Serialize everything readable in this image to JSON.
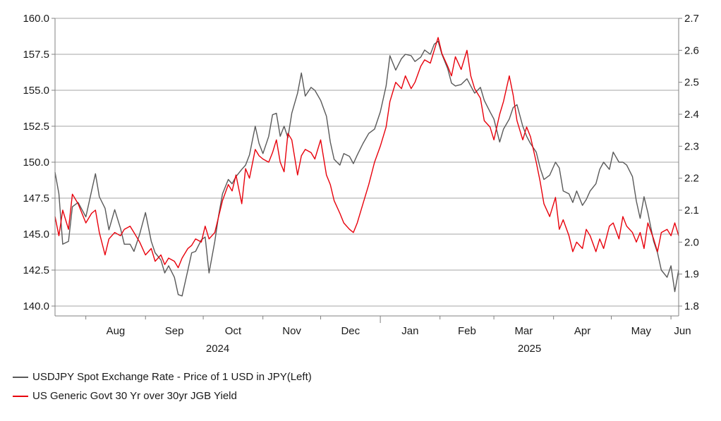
{
  "chart_data": {
    "type": "line",
    "title": "",
    "x_axis": {
      "months": [
        "Aug",
        "Sep",
        "Oct",
        "Nov",
        "Dec",
        "Jan",
        "Feb",
        "Mar",
        "Apr",
        "May",
        "Jun"
      ],
      "years": [
        "2024",
        "2025"
      ],
      "start": "2024-07-16",
      "end": "2025-06-05"
    },
    "y_left": {
      "min": 140.0,
      "max": 160.0,
      "ticks": [
        "140.0",
        "142.5",
        "145.0",
        "147.5",
        "150.0",
        "152.5",
        "155.0",
        "157.5",
        "160.0"
      ]
    },
    "y_right": {
      "min": 1.8,
      "max": 2.7,
      "ticks": [
        "1.8",
        "1.9",
        "2.0",
        "2.1",
        "2.2",
        "2.3",
        "2.4",
        "2.5",
        "2.6",
        "2.7"
      ]
    },
    "grid": "horizontal",
    "legend_position": "bottom-left",
    "series": [
      {
        "name": "USDJPY Spot Exchange Rate - Price of 1 USD in JPY(Left)",
        "axis": "left",
        "color": "#595959",
        "points": [
          [
            "2024-07-16",
            149.3
          ],
          [
            "2024-07-18",
            147.8
          ],
          [
            "2024-07-20",
            144.3
          ],
          [
            "2024-07-23",
            144.5
          ],
          [
            "2024-07-25",
            146.9
          ],
          [
            "2024-07-28",
            147.2
          ],
          [
            "2024-08-01",
            146.2
          ],
          [
            "2024-08-04",
            148.0
          ],
          [
            "2024-08-06",
            149.2
          ],
          [
            "2024-08-08",
            147.6
          ],
          [
            "2024-08-11",
            146.8
          ],
          [
            "2024-08-13",
            145.3
          ],
          [
            "2024-08-16",
            146.7
          ],
          [
            "2024-08-19",
            145.4
          ],
          [
            "2024-08-21",
            144.3
          ],
          [
            "2024-08-24",
            144.3
          ],
          [
            "2024-08-26",
            143.8
          ],
          [
            "2024-08-29",
            145.0
          ],
          [
            "2024-09-01",
            146.5
          ],
          [
            "2024-09-04",
            144.5
          ],
          [
            "2024-09-06",
            143.7
          ],
          [
            "2024-09-09",
            143.2
          ],
          [
            "2024-09-11",
            142.3
          ],
          [
            "2024-09-13",
            142.8
          ],
          [
            "2024-09-16",
            142.0
          ],
          [
            "2024-09-18",
            140.8
          ],
          [
            "2024-09-20",
            140.7
          ],
          [
            "2024-09-23",
            142.5
          ],
          [
            "2024-09-25",
            143.7
          ],
          [
            "2024-09-27",
            143.8
          ],
          [
            "2024-09-30",
            144.6
          ],
          [
            "2024-10-02",
            144.8
          ],
          [
            "2024-10-04",
            142.3
          ],
          [
            "2024-10-07",
            144.5
          ],
          [
            "2024-10-09",
            146.3
          ],
          [
            "2024-10-11",
            147.8
          ],
          [
            "2024-10-14",
            148.8
          ],
          [
            "2024-10-16",
            148.5
          ],
          [
            "2024-10-18",
            149.0
          ],
          [
            "2024-10-21",
            149.5
          ],
          [
            "2024-10-23",
            149.8
          ],
          [
            "2024-10-25",
            150.5
          ],
          [
            "2024-10-28",
            152.5
          ],
          [
            "2024-10-30",
            151.3
          ],
          [
            "2024-11-01",
            150.6
          ],
          [
            "2024-11-04",
            151.8
          ],
          [
            "2024-11-06",
            153.3
          ],
          [
            "2024-11-08",
            153.4
          ],
          [
            "2024-11-10",
            151.8
          ],
          [
            "2024-11-12",
            152.5
          ],
          [
            "2024-11-14",
            151.7
          ],
          [
            "2024-11-16",
            153.4
          ],
          [
            "2024-11-19",
            154.8
          ],
          [
            "2024-11-21",
            156.2
          ],
          [
            "2024-11-23",
            154.6
          ],
          [
            "2024-11-26",
            155.2
          ],
          [
            "2024-11-28",
            155.0
          ],
          [
            "2024-12-01",
            154.3
          ],
          [
            "2024-12-04",
            153.2
          ],
          [
            "2024-12-06",
            151.4
          ],
          [
            "2024-12-08",
            150.2
          ],
          [
            "2024-12-11",
            149.8
          ],
          [
            "2024-12-13",
            150.6
          ],
          [
            "2024-12-16",
            150.4
          ],
          [
            "2024-12-18",
            149.9
          ],
          [
            "2024-12-20",
            150.5
          ],
          [
            "2024-12-23",
            151.3
          ],
          [
            "2024-12-26",
            152.0
          ],
          [
            "2024-12-29",
            152.3
          ],
          [
            "2025-01-01",
            153.5
          ],
          [
            "2025-01-04",
            155.3
          ],
          [
            "2025-01-06",
            157.4
          ],
          [
            "2025-01-09",
            156.4
          ],
          [
            "2025-01-12",
            157.2
          ],
          [
            "2025-01-14",
            157.5
          ],
          [
            "2025-01-17",
            157.4
          ],
          [
            "2025-01-19",
            157.0
          ],
          [
            "2025-01-22",
            157.3
          ],
          [
            "2025-01-24",
            157.8
          ],
          [
            "2025-01-27",
            157.5
          ],
          [
            "2025-01-29",
            158.2
          ],
          [
            "2025-01-31",
            158.4
          ],
          [
            "2025-02-02",
            157.5
          ],
          [
            "2025-02-05",
            156.5
          ],
          [
            "2025-02-07",
            155.5
          ],
          [
            "2025-02-09",
            155.3
          ],
          [
            "2025-02-12",
            155.4
          ],
          [
            "2025-02-15",
            155.8
          ],
          [
            "2025-02-17",
            155.3
          ],
          [
            "2025-02-19",
            154.8
          ],
          [
            "2025-02-22",
            155.2
          ],
          [
            "2025-02-24",
            154.3
          ],
          [
            "2025-02-27",
            153.5
          ],
          [
            "2025-03-01",
            153.0
          ],
          [
            "2025-03-04",
            151.4
          ],
          [
            "2025-03-06",
            152.3
          ],
          [
            "2025-03-09",
            153.0
          ],
          [
            "2025-03-11",
            153.8
          ],
          [
            "2025-03-13",
            154.0
          ],
          [
            "2025-03-16",
            152.5
          ],
          [
            "2025-03-18",
            151.8
          ],
          [
            "2025-03-20",
            151.3
          ],
          [
            "2025-03-23",
            150.7
          ],
          [
            "2025-03-25",
            149.6
          ],
          [
            "2025-03-27",
            148.8
          ],
          [
            "2025-03-30",
            149.1
          ],
          [
            "2025-04-02",
            150.0
          ],
          [
            "2025-04-04",
            149.6
          ],
          [
            "2025-04-06",
            148.0
          ],
          [
            "2025-04-09",
            147.8
          ],
          [
            "2025-04-11",
            147.2
          ],
          [
            "2025-04-13",
            148.0
          ],
          [
            "2025-04-16",
            147.0
          ],
          [
            "2025-04-18",
            147.4
          ],
          [
            "2025-04-20",
            148.0
          ],
          [
            "2025-04-23",
            148.5
          ],
          [
            "2025-04-25",
            149.5
          ],
          [
            "2025-04-27",
            150.0
          ],
          [
            "2025-04-30",
            149.5
          ],
          [
            "2025-05-02",
            150.7
          ],
          [
            "2025-05-05",
            150.0
          ],
          [
            "2025-05-07",
            150.0
          ],
          [
            "2025-05-09",
            149.8
          ],
          [
            "2025-05-12",
            149.0
          ],
          [
            "2025-05-14",
            147.3
          ],
          [
            "2025-05-16",
            146.1
          ],
          [
            "2025-05-18",
            147.6
          ],
          [
            "2025-05-20",
            146.5
          ],
          [
            "2025-05-23",
            144.5
          ],
          [
            "2025-05-25",
            143.7
          ],
          [
            "2025-05-27",
            142.5
          ],
          [
            "2025-05-30",
            142.0
          ],
          [
            "2025-06-01",
            142.8
          ],
          [
            "2025-06-03",
            141.0
          ],
          [
            "2025-06-05",
            142.5
          ]
        ]
      },
      {
        "name": "US Generic Govt 30 Yr over 30yr JGB Yield",
        "axis": "right",
        "color": "#e8000b",
        "points": [
          [
            "2024-07-16",
            2.08
          ],
          [
            "2024-07-18",
            2.02
          ],
          [
            "2024-07-20",
            2.1
          ],
          [
            "2024-07-23",
            2.04
          ],
          [
            "2024-07-25",
            2.15
          ],
          [
            "2024-07-28",
            2.12
          ],
          [
            "2024-08-01",
            2.06
          ],
          [
            "2024-08-04",
            2.09
          ],
          [
            "2024-08-06",
            2.1
          ],
          [
            "2024-08-08",
            2.03
          ],
          [
            "2024-08-11",
            1.96
          ],
          [
            "2024-08-13",
            2.01
          ],
          [
            "2024-08-16",
            2.03
          ],
          [
            "2024-08-19",
            2.02
          ],
          [
            "2024-08-21",
            2.04
          ],
          [
            "2024-08-24",
            2.05
          ],
          [
            "2024-08-26",
            2.03
          ],
          [
            "2024-08-29",
            2.0
          ],
          [
            "2024-09-01",
            1.96
          ],
          [
            "2024-09-04",
            1.98
          ],
          [
            "2024-09-06",
            1.94
          ],
          [
            "2024-09-09",
            1.96
          ],
          [
            "2024-09-11",
            1.93
          ],
          [
            "2024-09-13",
            1.95
          ],
          [
            "2024-09-16",
            1.94
          ],
          [
            "2024-09-18",
            1.92
          ],
          [
            "2024-09-20",
            1.95
          ],
          [
            "2024-09-23",
            1.98
          ],
          [
            "2024-09-25",
            1.99
          ],
          [
            "2024-09-27",
            2.01
          ],
          [
            "2024-09-30",
            2.0
          ],
          [
            "2024-10-02",
            2.05
          ],
          [
            "2024-10-04",
            2.01
          ],
          [
            "2024-10-07",
            2.03
          ],
          [
            "2024-10-09",
            2.08
          ],
          [
            "2024-10-11",
            2.13
          ],
          [
            "2024-10-14",
            2.18
          ],
          [
            "2024-10-16",
            2.16
          ],
          [
            "2024-10-18",
            2.21
          ],
          [
            "2024-10-21",
            2.12
          ],
          [
            "2024-10-23",
            2.23
          ],
          [
            "2024-10-25",
            2.2
          ],
          [
            "2024-10-28",
            2.29
          ],
          [
            "2024-10-30",
            2.27
          ],
          [
            "2024-11-01",
            2.26
          ],
          [
            "2024-11-04",
            2.25
          ],
          [
            "2024-11-06",
            2.28
          ],
          [
            "2024-11-08",
            2.32
          ],
          [
            "2024-11-10",
            2.25
          ],
          [
            "2024-11-12",
            2.22
          ],
          [
            "2024-11-14",
            2.34
          ],
          [
            "2024-11-16",
            2.32
          ],
          [
            "2024-11-19",
            2.21
          ],
          [
            "2024-11-21",
            2.27
          ],
          [
            "2024-11-23",
            2.29
          ],
          [
            "2024-11-26",
            2.28
          ],
          [
            "2024-11-28",
            2.26
          ],
          [
            "2024-12-01",
            2.32
          ],
          [
            "2024-12-04",
            2.21
          ],
          [
            "2024-12-06",
            2.18
          ],
          [
            "2024-12-08",
            2.13
          ],
          [
            "2024-12-11",
            2.09
          ],
          [
            "2024-12-13",
            2.06
          ],
          [
            "2024-12-16",
            2.04
          ],
          [
            "2024-12-18",
            2.03
          ],
          [
            "2024-12-20",
            2.06
          ],
          [
            "2024-12-23",
            2.12
          ],
          [
            "2024-12-26",
            2.18
          ],
          [
            "2024-12-29",
            2.25
          ],
          [
            "2025-01-01",
            2.3
          ],
          [
            "2025-01-04",
            2.36
          ],
          [
            "2025-01-06",
            2.44
          ],
          [
            "2025-01-09",
            2.5
          ],
          [
            "2025-01-12",
            2.48
          ],
          [
            "2025-01-14",
            2.52
          ],
          [
            "2025-01-17",
            2.48
          ],
          [
            "2025-01-19",
            2.5
          ],
          [
            "2025-01-22",
            2.55
          ],
          [
            "2025-01-24",
            2.57
          ],
          [
            "2025-01-27",
            2.56
          ],
          [
            "2025-01-29",
            2.6
          ],
          [
            "2025-01-31",
            2.64
          ],
          [
            "2025-02-02",
            2.59
          ],
          [
            "2025-02-05",
            2.55
          ],
          [
            "2025-02-07",
            2.52
          ],
          [
            "2025-02-09",
            2.58
          ],
          [
            "2025-02-12",
            2.54
          ],
          [
            "2025-02-15",
            2.6
          ],
          [
            "2025-02-17",
            2.52
          ],
          [
            "2025-02-19",
            2.48
          ],
          [
            "2025-02-22",
            2.45
          ],
          [
            "2025-02-24",
            2.38
          ],
          [
            "2025-02-27",
            2.36
          ],
          [
            "2025-03-01",
            2.32
          ],
          [
            "2025-03-04",
            2.4
          ],
          [
            "2025-03-06",
            2.44
          ],
          [
            "2025-03-09",
            2.52
          ],
          [
            "2025-03-11",
            2.46
          ],
          [
            "2025-03-13",
            2.38
          ],
          [
            "2025-03-16",
            2.32
          ],
          [
            "2025-03-18",
            2.36
          ],
          [
            "2025-03-20",
            2.33
          ],
          [
            "2025-03-23",
            2.25
          ],
          [
            "2025-03-25",
            2.19
          ],
          [
            "2025-03-27",
            2.12
          ],
          [
            "2025-03-30",
            2.08
          ],
          [
            "2025-04-02",
            2.14
          ],
          [
            "2025-04-04",
            2.04
          ],
          [
            "2025-04-06",
            2.07
          ],
          [
            "2025-04-09",
            2.02
          ],
          [
            "2025-04-11",
            1.97
          ],
          [
            "2025-04-13",
            2.0
          ],
          [
            "2025-04-16",
            1.98
          ],
          [
            "2025-04-18",
            2.04
          ],
          [
            "2025-04-20",
            2.02
          ],
          [
            "2025-04-23",
            1.97
          ],
          [
            "2025-04-25",
            2.01
          ],
          [
            "2025-04-27",
            1.98
          ],
          [
            "2025-04-30",
            2.05
          ],
          [
            "2025-05-02",
            2.06
          ],
          [
            "2025-05-05",
            2.01
          ],
          [
            "2025-05-07",
            2.08
          ],
          [
            "2025-05-09",
            2.05
          ],
          [
            "2025-05-12",
            2.03
          ],
          [
            "2025-05-14",
            2.0
          ],
          [
            "2025-05-16",
            2.03
          ],
          [
            "2025-05-18",
            1.98
          ],
          [
            "2025-05-20",
            2.06
          ],
          [
            "2025-05-23",
            2.01
          ],
          [
            "2025-05-25",
            1.97
          ],
          [
            "2025-05-27",
            2.03
          ],
          [
            "2025-05-30",
            2.04
          ],
          [
            "2025-06-01",
            2.02
          ],
          [
            "2025-06-03",
            2.06
          ],
          [
            "2025-06-05",
            2.02
          ]
        ]
      }
    ]
  }
}
